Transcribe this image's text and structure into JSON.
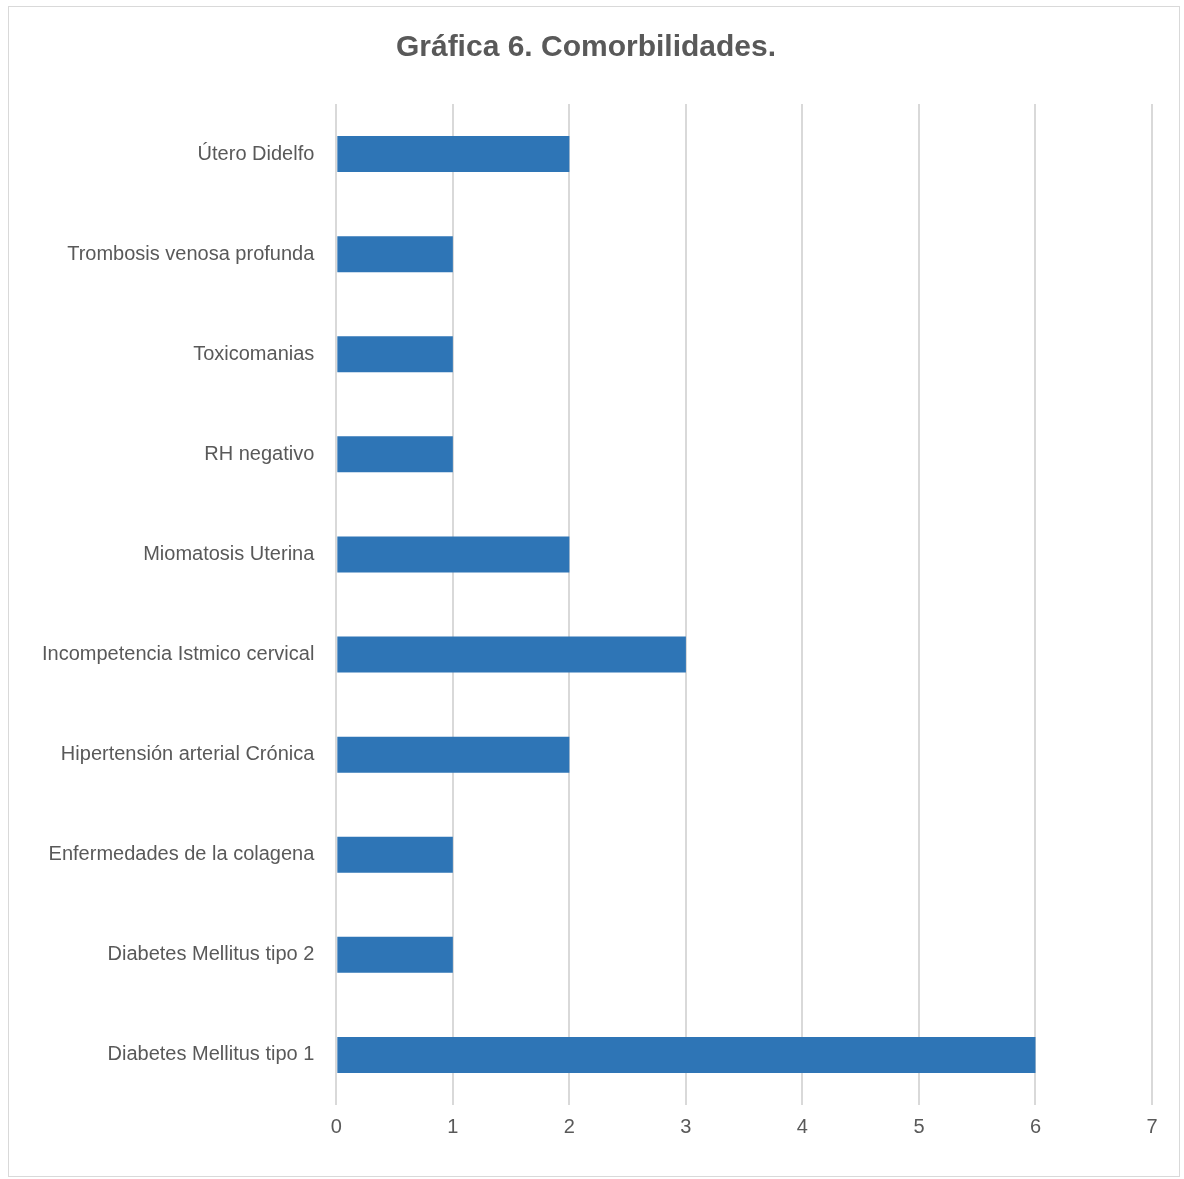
{
  "chart_data": {
    "type": "bar",
    "orientation": "horizontal",
    "title": "Gráfica 6. Comorbilidades.",
    "categories": [
      "Útero Didelfo",
      "Trombosis venosa profunda",
      "Toxicomanias",
      "RH negativo",
      "Miomatosis Uterina",
      "Incompetencia Istmico cervical",
      "Hipertensión arterial Crónica",
      "Enfermedades de la colagena",
      "Diabetes Mellitus tipo 2",
      "Diabetes Mellitus tipo 1"
    ],
    "values": [
      2,
      1,
      1,
      1,
      2,
      3,
      2,
      1,
      1,
      6
    ],
    "color": "#2e75b6",
    "xlim": [
      0,
      7
    ],
    "xticks": [
      0,
      1,
      2,
      3,
      4,
      5,
      6,
      7
    ],
    "grid": "x",
    "legend": false
  }
}
